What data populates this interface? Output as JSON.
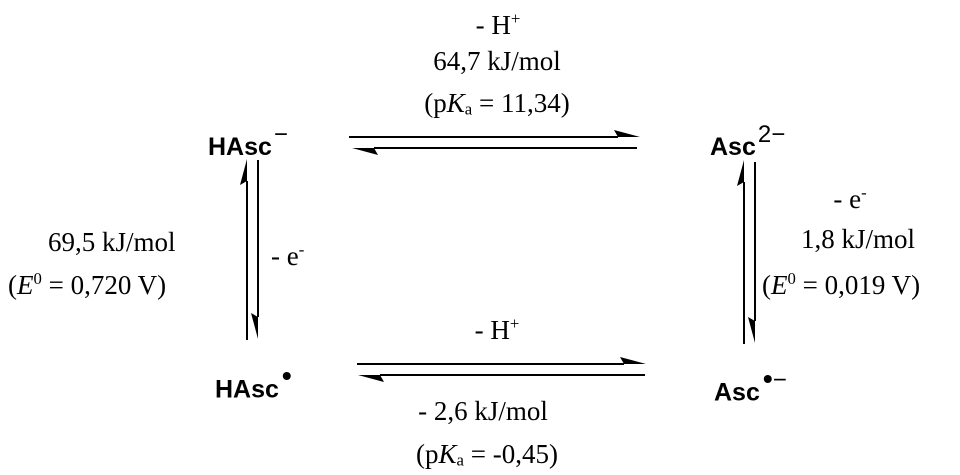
{
  "species": {
    "hasc_minus": {
      "base": "HAsc",
      "charge": "−"
    },
    "asc_2minus": {
      "base": "Asc",
      "charge": "2−"
    },
    "hasc_radical": {
      "base": "HAsc",
      "radical": "•"
    },
    "asc_radical_minus": {
      "base": "Asc",
      "radical": "•",
      "charge": "−"
    }
  },
  "top_transition": {
    "step": "- H",
    "step_sup": "+",
    "energy": "64,7 kJ/mol",
    "const_open": "(p",
    "const_symbol": "K",
    "const_sub": "a",
    "const_value": " = 11,34)"
  },
  "bottom_transition": {
    "step": "- H",
    "step_sup": "+",
    "energy": "- 2,6 kJ/mol",
    "const_open": "(p",
    "const_symbol": "K",
    "const_sub": "a",
    "const_value": " = -0,45)"
  },
  "left_transition": {
    "step": "- e",
    "step_sup": "-",
    "energy": "69,5 kJ/mol",
    "const_open": "(",
    "const_symbol": "E",
    "const_sup": "0",
    "const_value": " = 0,720 V)"
  },
  "right_transition": {
    "step": "- e",
    "step_sup": "-",
    "energy": "1,8 kJ/mol",
    "const_open": "(",
    "const_symbol": "E",
    "const_sup": "0",
    "const_value": " = 0,019 V)"
  }
}
